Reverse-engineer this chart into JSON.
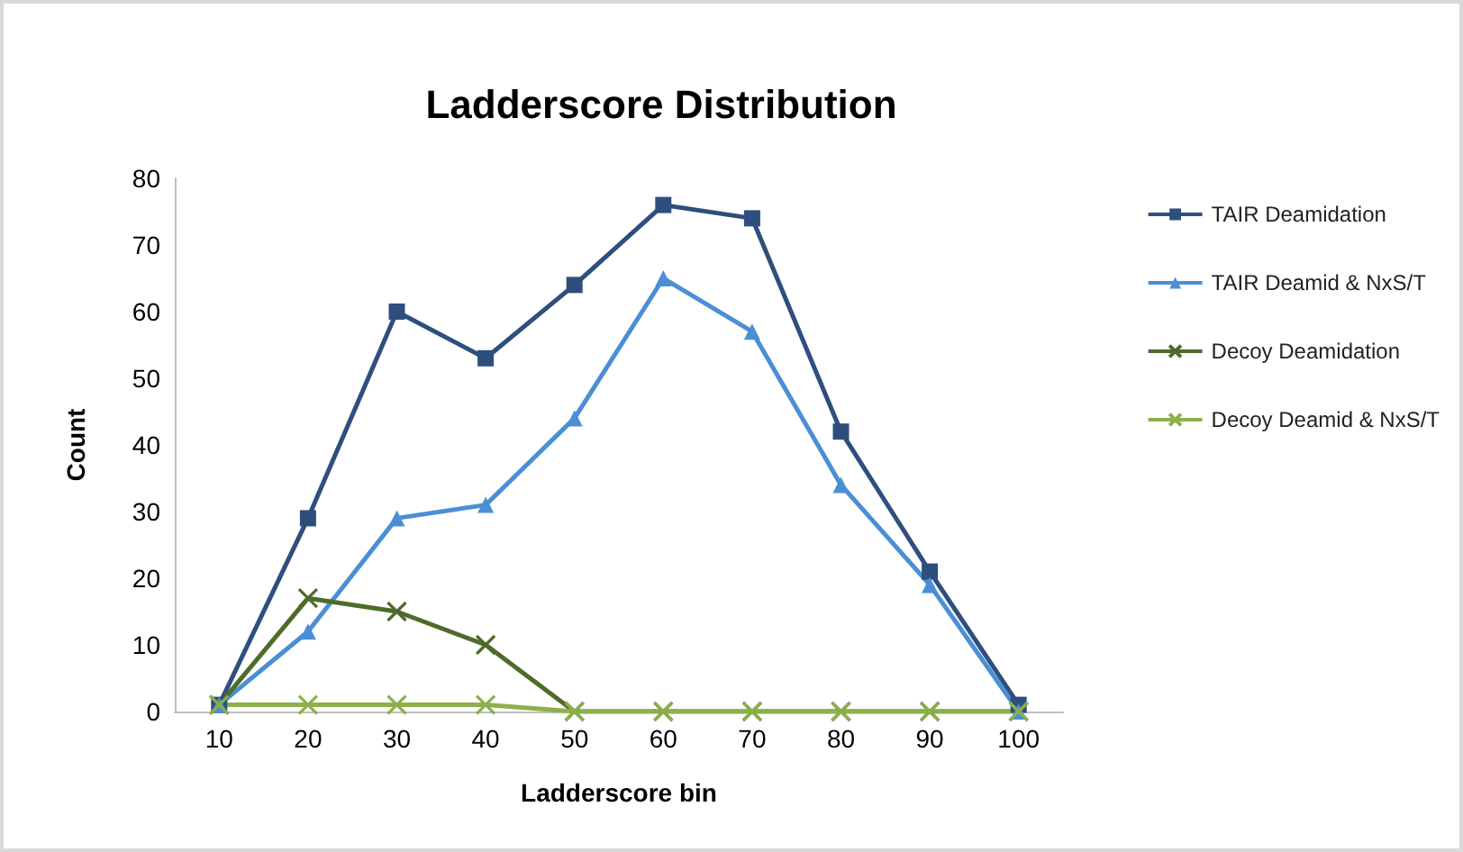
{
  "chart_data": {
    "type": "line",
    "title": "Ladderscore Distribution",
    "xlabel": "Ladderscore bin",
    "ylabel": "Count",
    "categories": [
      "10",
      "20",
      "30",
      "40",
      "50",
      "60",
      "70",
      "80",
      "90",
      "100"
    ],
    "series": [
      {
        "name": "TAIR Deamidation",
        "color": "#2e4f7e",
        "marker": "square",
        "values": [
          1,
          29,
          60,
          53,
          64,
          76,
          74,
          42,
          21,
          1
        ]
      },
      {
        "name": "TAIR Deamid & NxS/T",
        "color": "#4a8fd6",
        "marker": "triangle",
        "values": [
          1,
          12,
          29,
          31,
          44,
          65,
          57,
          34,
          19,
          0
        ]
      },
      {
        "name": "Decoy Deamidation",
        "color": "#4f6b2a",
        "marker": "cross",
        "values": [
          1,
          17,
          15,
          10,
          0,
          0,
          0,
          0,
          0,
          0
        ]
      },
      {
        "name": "Decoy Deamid & NxS/T",
        "color": "#8db04a",
        "marker": "cross",
        "values": [
          1,
          1,
          1,
          1,
          0,
          0,
          0,
          0,
          0,
          0
        ]
      }
    ],
    "ylim": [
      0,
      80
    ],
    "yticks": [
      0,
      10,
      20,
      30,
      40,
      50,
      60,
      70,
      80
    ],
    "grid": false,
    "legend": "right",
    "line_style": "solid"
  }
}
